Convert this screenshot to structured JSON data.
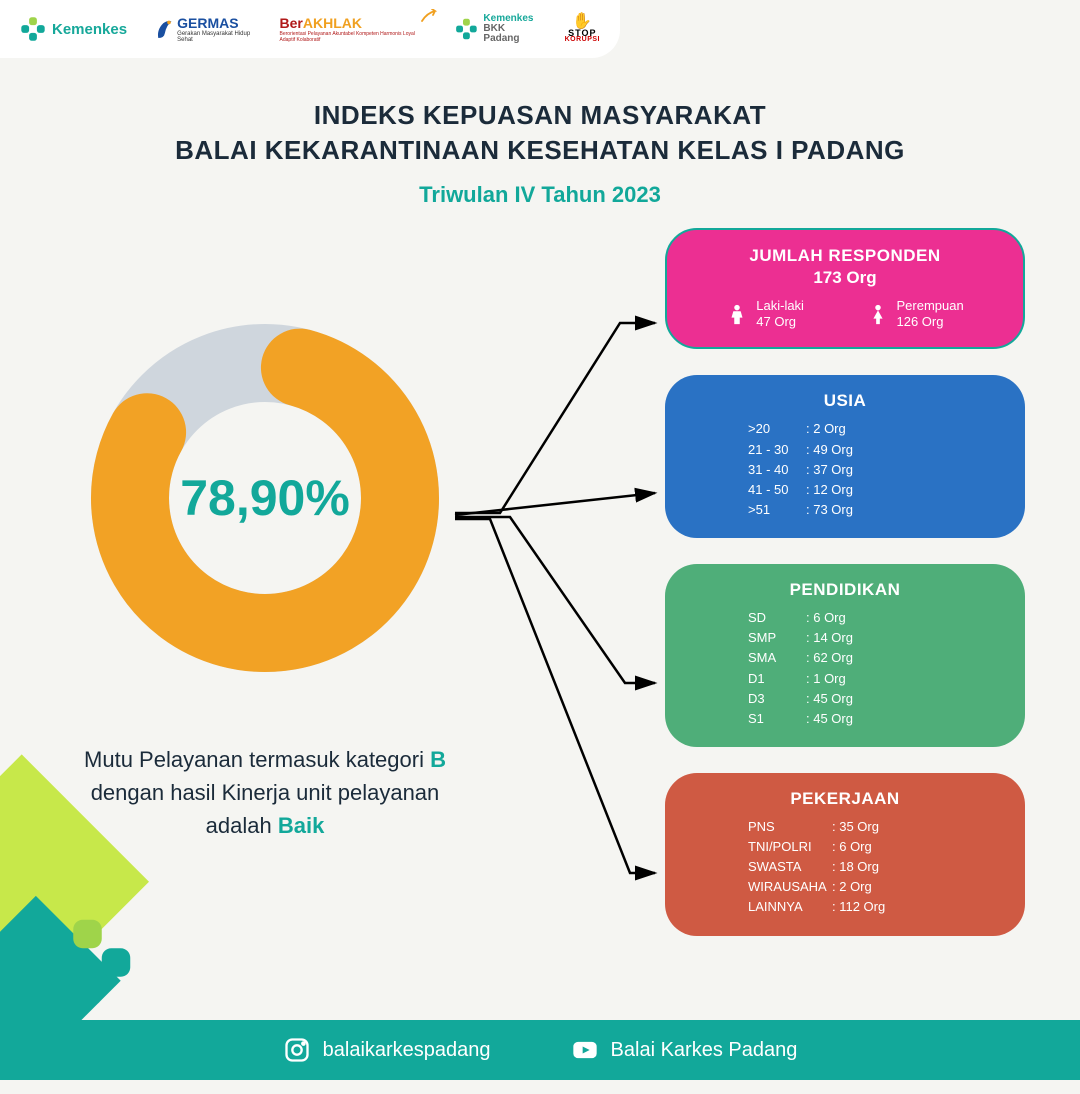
{
  "header": {
    "logos": [
      {
        "name": "kemenkes",
        "text": "Kemenkes"
      },
      {
        "name": "germas",
        "text": "GERMAS",
        "sub": "Gerakan Masyarakat Hidup Sehat"
      },
      {
        "name": "berakhlak",
        "pre": "Ber",
        "mid": "AKHLAK",
        "sub": "Berorientasi Pelayanan Akuntabel Kompeten Harmonis Loyal Adaptif Kolaboratif"
      },
      {
        "name": "kemenkes-bkk",
        "line1": "Kemenkes",
        "line2": "BKK Padang"
      },
      {
        "name": "stop-korupsi",
        "line1": "STOP",
        "line2": "KORUPSI"
      }
    ]
  },
  "title": {
    "line1": "INDEKS KEPUASAN MASYARAKAT",
    "line2": "BALAI KEKARANTINAAN KESEHATAN KELAS I PADANG",
    "subtitle": "Triwulan IV Tahun 2023"
  },
  "donut": {
    "percent_label": "78,90%",
    "percent_value": 78.9,
    "ring_color": "#f2a225",
    "track_color": "#cfd6dd",
    "bg_color": "#f5f5f2",
    "thickness_ratio": 0.3
  },
  "caption": {
    "pre": "Mutu Pelayanan termasuk kategori ",
    "grade": "B",
    "mid": " dengan hasil Kinerja unit pelayanan adalah ",
    "result": "Baik"
  },
  "cards": {
    "responden": {
      "title": "JUMLAH RESPONDEN",
      "total": "173 Org",
      "male_label": "Laki-laki",
      "male_value": "47 Org",
      "female_label": "Perempuan",
      "female_value": "126 Org",
      "bg": "#ec2f92",
      "border": "#12a89a"
    },
    "usia": {
      "title": "USIA",
      "rows": [
        {
          "k": ">20",
          "v": "2 Org"
        },
        {
          "k": "21 - 30",
          "v": "49 Org"
        },
        {
          "k": "31 - 40",
          "v": "37 Org"
        },
        {
          "k": "41 - 50",
          "v": "12 Org"
        },
        {
          "k": ">51",
          "v": "73 Org"
        }
      ],
      "bg": "#2a72c4"
    },
    "pendidikan": {
      "title": "PENDIDIKAN",
      "rows": [
        {
          "k": "SD",
          "v": "6 Org"
        },
        {
          "k": "SMP",
          "v": "14 Org"
        },
        {
          "k": "SMA",
          "v": "62 Org"
        },
        {
          "k": "D1",
          "v": "1 Org"
        },
        {
          "k": "D3",
          "v": "45 Org"
        },
        {
          "k": "S1",
          "v": "45 Org"
        }
      ],
      "bg": "#4fae79"
    },
    "pekerjaan": {
      "title": "PEKERJAAN",
      "rows": [
        {
          "k": "PNS",
          "v": "35 Org"
        },
        {
          "k": "TNI/POLRI",
          "v": "6 Org"
        },
        {
          "k": "SWASTA",
          "v": "18 Org"
        },
        {
          "k": "WIRAUSAHA",
          "v": "2 Org"
        },
        {
          "k": "LAINNYA",
          "v": "112 Org"
        }
      ],
      "bg": "#cf5a43"
    }
  },
  "footer": {
    "instagram": "balaikarkespadang",
    "youtube": "Balai Karkes Padang",
    "bg": "#12a89a"
  },
  "colors": {
    "teal": "#12a89a",
    "dark": "#1b2b3a",
    "lime": "#c7e84a"
  }
}
